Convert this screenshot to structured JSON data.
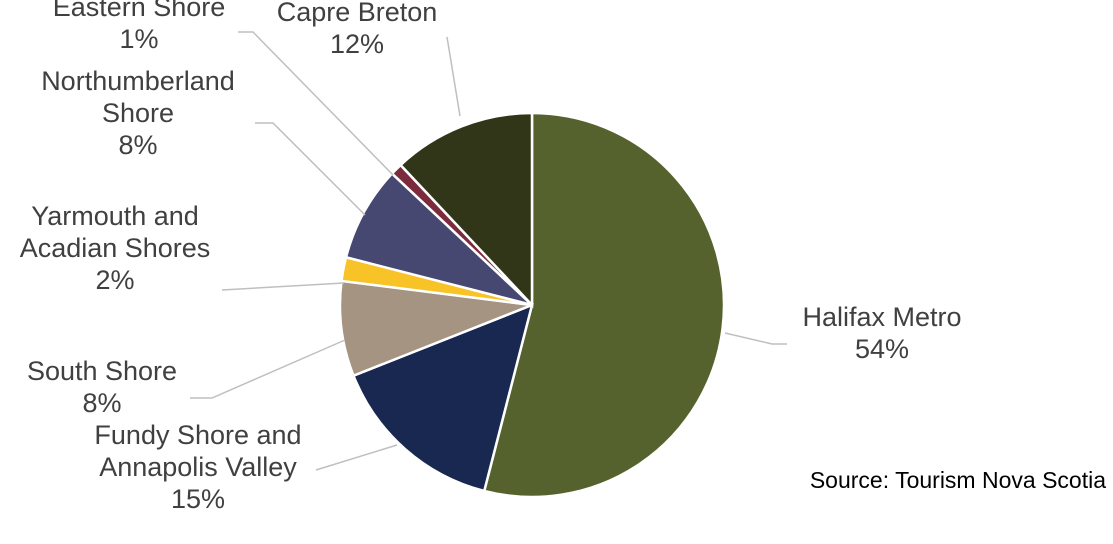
{
  "chart_data": {
    "type": "pie",
    "slices": [
      {
        "label_lines": [
          "Halifax Metro"
        ],
        "pct_label": "54%",
        "value": 54,
        "color": "#55622d"
      },
      {
        "label_lines": [
          "Fundy Shore and",
          "Annapolis Valley"
        ],
        "pct_label": "15%",
        "value": 15,
        "color": "#182850"
      },
      {
        "label_lines": [
          "South Shore"
        ],
        "pct_label": "8%",
        "value": 8,
        "color": "#a69482"
      },
      {
        "label_lines": [
          "Yarmouth and",
          "Acadian Shores"
        ],
        "pct_label": "2%",
        "value": 2,
        "color": "#f7c326"
      },
      {
        "label_lines": [
          "Northumberland",
          "Shore"
        ],
        "pct_label": "8%",
        "value": 8,
        "color": "#464872"
      },
      {
        "label_lines": [
          "Eastern Shore"
        ],
        "pct_label": "1%",
        "value": 1,
        "color": "#7c2b3c"
      },
      {
        "label_lines": [
          "Capre Breton"
        ],
        "pct_label": "12%",
        "value": 12,
        "color": "#323618"
      }
    ],
    "start": "12 o'clock",
    "direction": "clockwise",
    "legend": "none (data labels with leader lines)"
  },
  "source_note": "Source: Tourism Nova Scotia"
}
